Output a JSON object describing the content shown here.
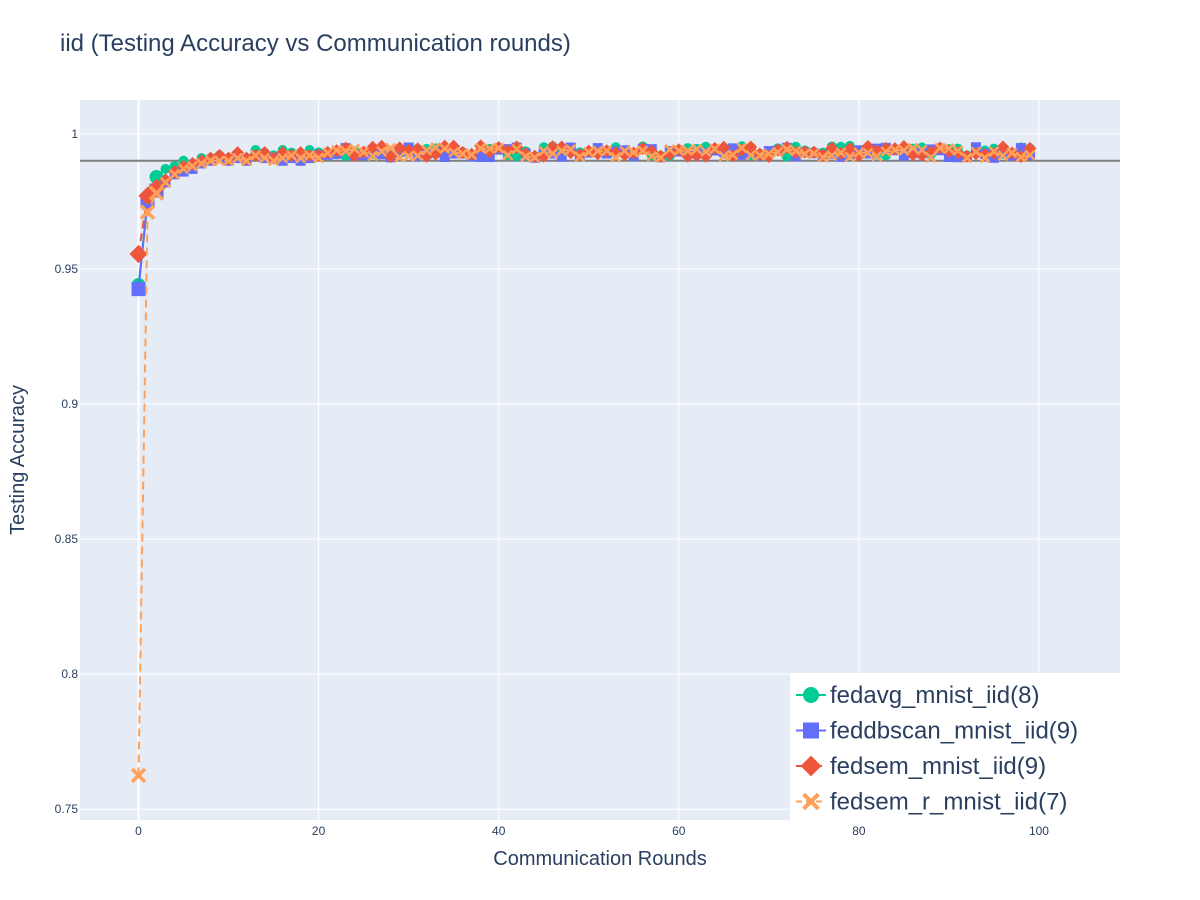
{
  "chart_data": {
    "type": "line",
    "title": "iid (Testing Accuracy vs Communication rounds)",
    "xlabel": "Communication Rounds",
    "ylabel": "Testing Accuracy",
    "xlim": [
      -6.5,
      109
    ],
    "ylim": [
      0.746,
      1.0125
    ],
    "xticks": [
      "0",
      "20",
      "40",
      "60",
      "80",
      "100"
    ],
    "yticks": [
      "0.75",
      "0.8",
      "0.85",
      "0.9",
      "0.95",
      "1"
    ],
    "reference_line": 0.99,
    "grid": true,
    "legend_position": "bottom-right",
    "series": [
      {
        "name": "fedavg_mnist_iid(8)",
        "color": "#00cc96",
        "marker": "circle",
        "dash": "solid",
        "early": [
          0.944,
          0.975,
          0.984,
          0.987,
          0.988,
          0.99,
          0.989,
          0.991,
          0.991,
          0.992,
          0.991,
          0.992,
          0.991,
          0.994,
          0.993,
          0.992,
          0.994,
          0.993,
          0.992,
          0.994
        ],
        "plateau": 0.9935
      },
      {
        "name": "feddbscan_mnist_iid(9)",
        "color": "#636efa",
        "marker": "square",
        "dash": "solid",
        "early": [
          0.9425,
          0.975,
          0.979,
          0.982,
          0.985,
          0.986,
          0.987,
          0.989,
          0.99,
          0.991,
          0.99,
          0.991,
          0.99,
          0.992,
          0.991,
          0.991,
          0.99,
          0.991,
          0.99,
          0.991
        ],
        "plateau": 0.993
      },
      {
        "name": "fedsem_mnist_iid(9)",
        "color": "#ef553b",
        "marker": "diamond",
        "dash": "dash",
        "early": [
          0.9555,
          0.977,
          0.98,
          0.983,
          0.986,
          0.988,
          0.989,
          0.99,
          0.991,
          0.992,
          0.991,
          0.993,
          0.991,
          0.992,
          0.993,
          0.991,
          0.993,
          0.992,
          0.993,
          0.992
        ],
        "plateau": 0.9935
      },
      {
        "name": "fedsem_r_mnist_iid(7)",
        "color": "#ffa15a",
        "marker": "x",
        "dash": "dash",
        "early": [
          0.7625,
          0.971,
          0.978,
          0.982,
          0.985,
          0.987,
          0.988,
          0.989,
          0.99,
          0.99,
          0.99,
          0.991,
          0.99,
          0.992,
          0.991,
          0.99,
          0.991,
          0.992,
          0.991,
          0.992
        ],
        "plateau": 0.993
      }
    ]
  }
}
